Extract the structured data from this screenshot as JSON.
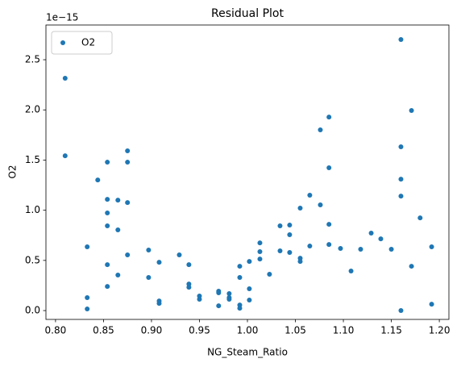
{
  "chart_data": {
    "type": "scatter",
    "title": "Residual Plot",
    "x_label": "NG_Steam_Ratio",
    "y_label": "O2",
    "y_offset_label": "1e−15",
    "legend": "upper left",
    "grid": false,
    "xlim": [
      0.79,
      1.21
    ],
    "ylim": [
      -0.088,
      2.846
    ],
    "xticks": [
      {
        "value": 0.8,
        "label": "0.80"
      },
      0.85,
      {
        "value": 0.9,
        "label": "0.90"
      },
      0.95,
      {
        "value": 1.0,
        "label": "1.00"
      },
      1.05,
      {
        "value": 1.1,
        "label": "1.10"
      },
      1.15,
      {
        "value": 1.2,
        "label": "1.20"
      }
    ],
    "yticks": [
      {
        "value": 0,
        "label": "0.0"
      },
      0.5,
      {
        "value": 1,
        "label": "1.0"
      },
      1.5,
      {
        "value": 2,
        "label": "2.0"
      },
      2.5
    ],
    "series": [
      {
        "name": "O2",
        "color": "#1f77b4",
        "x": [
          0.81,
          0.81,
          0.833,
          0.833,
          0.833,
          0.844,
          0.854,
          0.854,
          0.854,
          0.854,
          0.854,
          0.854,
          0.865,
          0.865,
          0.865,
          0.875,
          0.875,
          0.875,
          0.875,
          0.897,
          0.897,
          0.908,
          0.908,
          0.908,
          0.929,
          0.939,
          0.939,
          0.939,
          0.95,
          0.95,
          0.97,
          0.97,
          0.97,
          0.981,
          0.981,
          0.981,
          0.992,
          0.992,
          0.992,
          0.992,
          1.002,
          1.002,
          1.002,
          1.013,
          1.013,
          1.013,
          1.023,
          1.034,
          1.034,
          1.044,
          1.044,
          1.044,
          1.055,
          1.055,
          1.055,
          1.065,
          1.065,
          1.076,
          1.076,
          1.085,
          1.085,
          1.085,
          1.085,
          1.097,
          1.108,
          1.118,
          1.129,
          1.139,
          1.15,
          1.16,
          1.16,
          1.16,
          1.16,
          1.16,
          1.171,
          1.171,
          1.18,
          1.192,
          1.192
        ],
        "values": [
          2.315,
          1.543,
          0.635,
          0.129,
          0.016,
          1.302,
          1.479,
          1.109,
          0.973,
          0.844,
          0.458,
          0.241,
          1.101,
          0.804,
          0.354,
          1.592,
          1.479,
          1.077,
          0.555,
          0.603,
          0.33,
          0.482,
          0.096,
          0.072,
          0.555,
          0.458,
          0.265,
          0.233,
          0.145,
          0.113,
          0.193,
          0.177,
          0.048,
          0.169,
          0.129,
          0.113,
          0.442,
          0.33,
          0.056,
          0.024,
          0.49,
          0.217,
          0.105,
          0.675,
          0.587,
          0.514,
          0.362,
          0.595,
          0.844,
          0.852,
          0.756,
          0.579,
          1.021,
          0.522,
          0.49,
          1.15,
          0.643,
          1.801,
          1.053,
          1.929,
          1.423,
          0.86,
          0.659,
          0.619,
          0.394,
          0.611,
          0.772,
          0.715,
          0.611,
          2.701,
          1.632,
          1.31,
          1.141,
          0.0,
          1.994,
          0.442,
          0.924,
          0.635,
          0.064
        ]
      }
    ]
  }
}
